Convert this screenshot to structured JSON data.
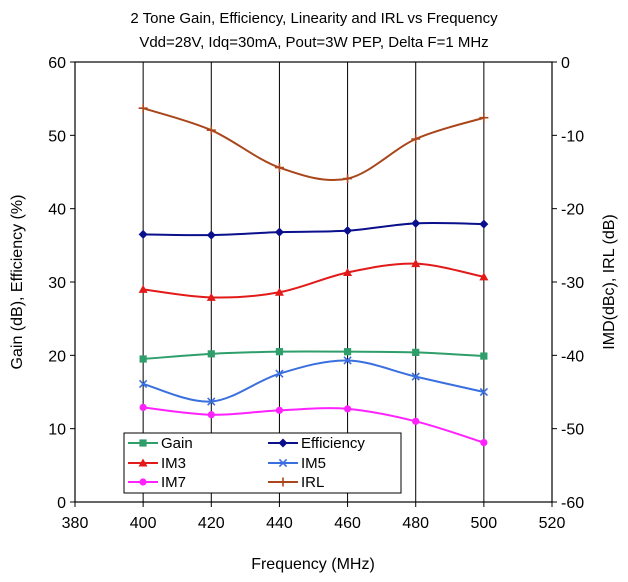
{
  "chart_data": {
    "type": "line",
    "title": "2 Tone Gain, Efficiency, Linearity and IRL vs Frequency",
    "subtitle": "Vdd=28V, Idq=30mA, Pout=3W PEP, Delta F=1 MHz",
    "xlabel": "Frequency (MHz)",
    "ylabel": "Gain (dB), Efficiency (%)",
    "y2label": "IMD(dBc), IRL (dB)",
    "xlim": [
      380,
      520
    ],
    "ylim": [
      0,
      60
    ],
    "y2lim": [
      -60,
      0
    ],
    "x_ticks": [
      "380",
      "400",
      "420",
      "440",
      "460",
      "480",
      "500",
      "520"
    ],
    "y_ticks": [
      "0",
      "10",
      "20",
      "30",
      "40",
      "50",
      "60"
    ],
    "y2_ticks": [
      "-60",
      "-50",
      "-40",
      "-30",
      "-20",
      "-10",
      "0"
    ],
    "grid": {
      "vertical": true,
      "horizontal": false
    },
    "legend_position": "bottom-left inside plot",
    "x": [
      400,
      420,
      440,
      460,
      480,
      500
    ],
    "series": [
      {
        "name": "Gain",
        "axis": "left",
        "color": "#2e9e6b",
        "marker": "square",
        "values": [
          19.5,
          20.2,
          20.5,
          20.5,
          20.4,
          19.9
        ]
      },
      {
        "name": "Efficiency",
        "axis": "left",
        "color": "#0a0f8c",
        "marker": "diamond",
        "values": [
          36.5,
          36.4,
          36.8,
          37.0,
          38.0,
          37.9
        ]
      },
      {
        "name": "IM3",
        "axis": "right",
        "color": "#e21a1a",
        "marker": "triangle",
        "values": [
          -31.0,
          -32.1,
          -31.4,
          -28.7,
          -27.5,
          -29.3
        ]
      },
      {
        "name": "IM5",
        "axis": "right",
        "color": "#3a6fe0",
        "marker": "x",
        "values": [
          -43.9,
          -46.3,
          -42.5,
          -40.7,
          -42.9,
          -45.0
        ]
      },
      {
        "name": "IM7",
        "axis": "right",
        "color": "#ff22ff",
        "marker": "circle",
        "values": [
          -47.1,
          -48.1,
          -47.5,
          -47.3,
          -49.0,
          -51.9
        ]
      },
      {
        "name": "IRL",
        "axis": "right",
        "color": "#a9461b",
        "marker": "plus",
        "values": [
          -6.3,
          -9.3,
          -14.4,
          -15.9,
          -10.5,
          -7.6
        ]
      }
    ]
  }
}
